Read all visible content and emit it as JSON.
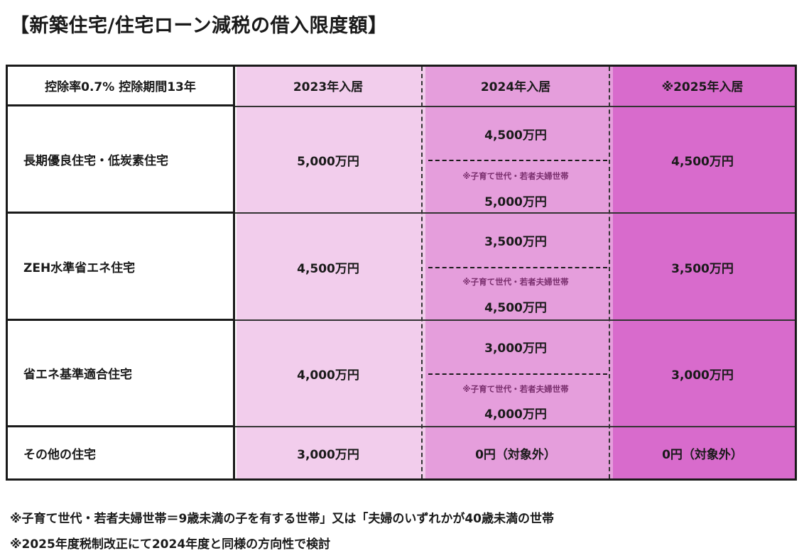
{
  "title": "【新築住宅/住宅ローン減税の借入限度額】",
  "table": {
    "header": {
      "label": "控除率0.7% 控除期間13年",
      "col2023": "2023年入居",
      "col2024": "2024年入居",
      "col2025": "※2025年入居"
    },
    "rows": [
      {
        "label": "長期優良住宅・低炭素住宅",
        "v2023": "5,000万円",
        "v2024_main": "4,500万円",
        "v2024_note": "※子育て世代・若者夫婦世帯",
        "v2024_special": "5,000万円",
        "v2025": "4,500万円"
      },
      {
        "label": "ZEH水準省エネ住宅",
        "v2023": "4,500万円",
        "v2024_main": "3,500万円",
        "v2024_note": "※子育て世代・若者夫婦世帯",
        "v2024_special": "4,500万円",
        "v2025": "3,500万円"
      },
      {
        "label": "省エネ基準適合住宅",
        "v2023": "4,000万円",
        "v2024_main": "3,000万円",
        "v2024_note": "※子育て世代・若者夫婦世帯",
        "v2024_special": "4,000万円",
        "v2025": "3,000万円"
      },
      {
        "label": "その他の住宅",
        "v2023": "3,000万円",
        "v2024": "0円（対象外）",
        "v2025": "0円（対象外）"
      }
    ]
  },
  "footnotes": [
    "※子育て世代・若者夫婦世帯＝9歳未満の子を有する世帯」又は「夫婦のいずれかが40歳未満の世帯",
    "※2025年度税制改正にて2024年度と同様の方向性で検討"
  ],
  "colors": {
    "col2023": "#f2cdec",
    "col2024": "#e59edc",
    "col2025": "#d86bcc"
  }
}
